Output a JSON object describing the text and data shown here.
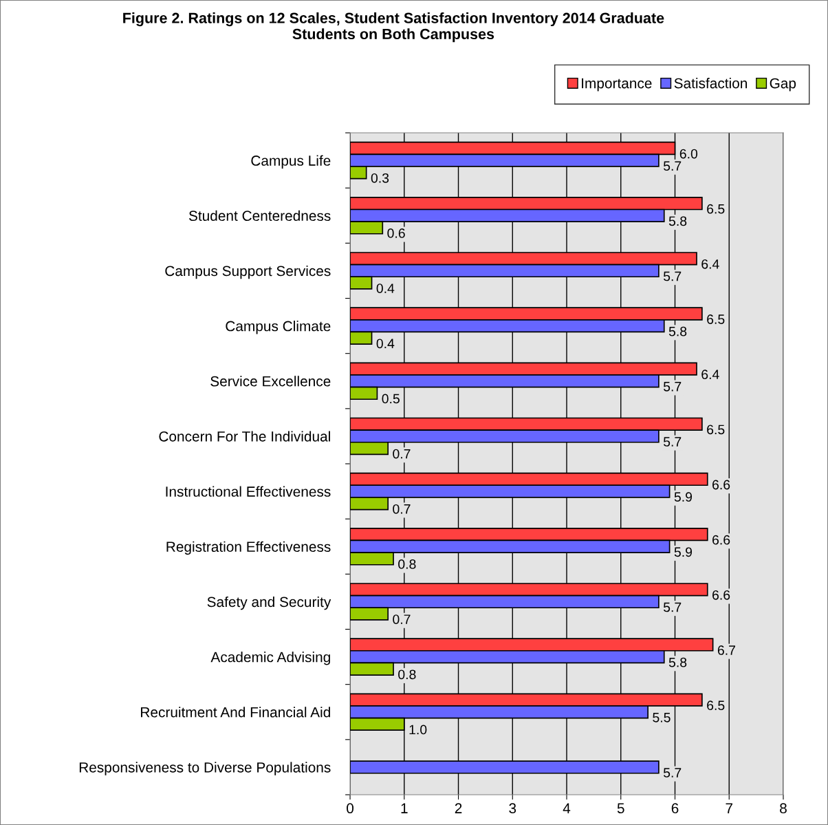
{
  "chart_data": {
    "type": "bar",
    "orientation": "horizontal",
    "title": "Figure 2. Ratings on 12 Scales, Student Satisfaction Inventory 2014 Graduate\nStudents on Both Campuses",
    "categories": [
      "Campus Life",
      "Student Centeredness",
      "Campus Support Services",
      "Campus Climate",
      "Service Excellence",
      "Concern For The Individual",
      "Instructional Effectiveness",
      "Registration Effectiveness",
      "Safety and Security",
      "Academic Advising",
      "Recruitment And Financial Aid",
      "Responsiveness to Diverse Populations"
    ],
    "series": [
      {
        "name": "Importance",
        "color": "#ff4040",
        "values": [
          6.0,
          6.5,
          6.4,
          6.5,
          6.4,
          6.5,
          6.6,
          6.6,
          6.6,
          6.7,
          6.5,
          null
        ],
        "value_labels": [
          "6.0",
          "6.5",
          "6.4",
          "6.5",
          "6.4",
          "6.5",
          "6.6",
          "6.6",
          "6.6",
          "6.7",
          "6.5",
          null
        ]
      },
      {
        "name": "Satisfaction",
        "color": "#6666ff",
        "values": [
          5.7,
          5.8,
          5.7,
          5.8,
          5.7,
          5.7,
          5.9,
          5.9,
          5.7,
          5.8,
          5.5,
          5.7
        ],
        "value_labels": [
          "5.7",
          "5.8",
          "5.7",
          "5.8",
          "5.7",
          "5.7",
          "5.9",
          "5.9",
          "5.7",
          "5.8",
          "5.5",
          "5.7"
        ]
      },
      {
        "name": "Gap",
        "color": "#99cc00",
        "values": [
          0.3,
          0.6,
          0.4,
          0.4,
          0.5,
          0.7,
          0.7,
          0.8,
          0.7,
          0.8,
          1.0,
          null
        ],
        "value_labels": [
          "0.3",
          "0.6",
          "0.4",
          "0.4",
          "0.5",
          "0.7",
          "0.7",
          "0.8",
          "0.7",
          "0.8",
          "1.0",
          null
        ]
      }
    ],
    "xlim": [
      0,
      8
    ],
    "xticks": [
      0,
      1,
      2,
      3,
      4,
      5,
      6,
      7,
      8
    ],
    "grid": "x",
    "legend": "top right"
  }
}
